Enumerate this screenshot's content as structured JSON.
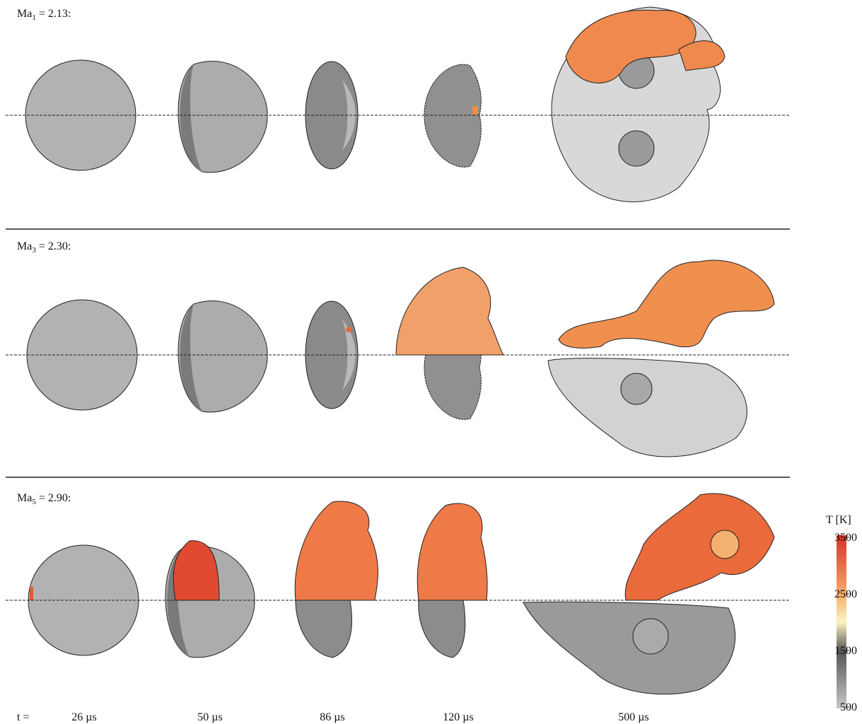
{
  "rows": [
    {
      "symbol": "Ma",
      "index": "1",
      "value": " = 2.13:"
    },
    {
      "symbol": "Ma",
      "index": "3",
      "value": " = 2.30:"
    },
    {
      "symbol": "Ma",
      "index": "5",
      "value": " = 2.90:"
    }
  ],
  "time_prefix": "t =",
  "times": [
    "26 µs",
    "50 µs",
    "86 µs",
    "120 µs",
    "500 µs"
  ],
  "colorbar": {
    "title": "T [K]",
    "lim": [
      500,
      3500
    ],
    "ticks": [
      500,
      1500,
      2500,
      3500
    ]
  }
}
